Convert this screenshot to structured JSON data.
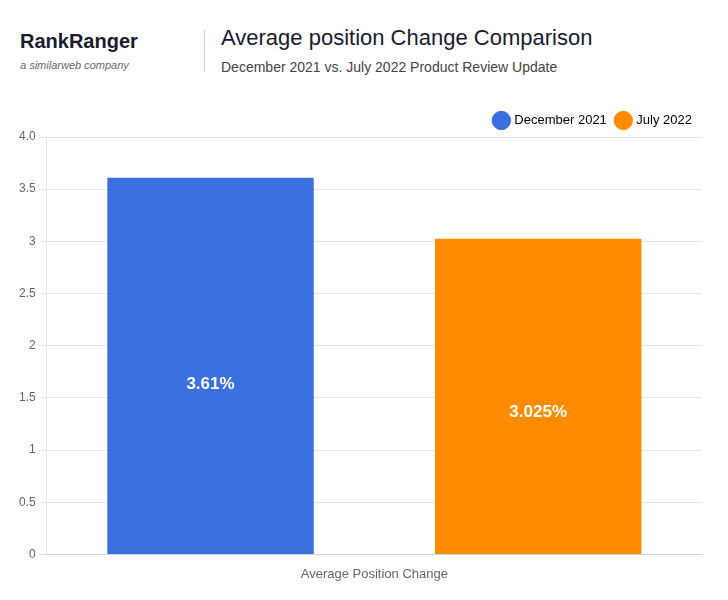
{
  "chart_data": {
    "type": "bar",
    "title": "Average position Change Comparison",
    "subtitle": "December 2021 vs. July 2022 Product Review Update",
    "annotations": [
      "RankRanger",
      "a similarweb company"
    ],
    "xlabel": "Average Position Change",
    "categories": [
      "December 2021",
      "July 2022"
    ],
    "values": [
      3.61,
      3.025
    ],
    "value_labels": [
      "3.61%",
      "3.025%"
    ],
    "colors": [
      "#3B6FE0",
      "#FF8C00"
    ],
    "data_labels": true,
    "legend": "top right",
    "tick_labels": "y",
    "grid": true,
    "ylim": [
      0,
      4.0
    ],
    "yticks": [
      0,
      0.5,
      1,
      1.5,
      2,
      2.5,
      3,
      3.5,
      {
        "value": 4.0,
        "label": "4.0"
      }
    ]
  }
}
